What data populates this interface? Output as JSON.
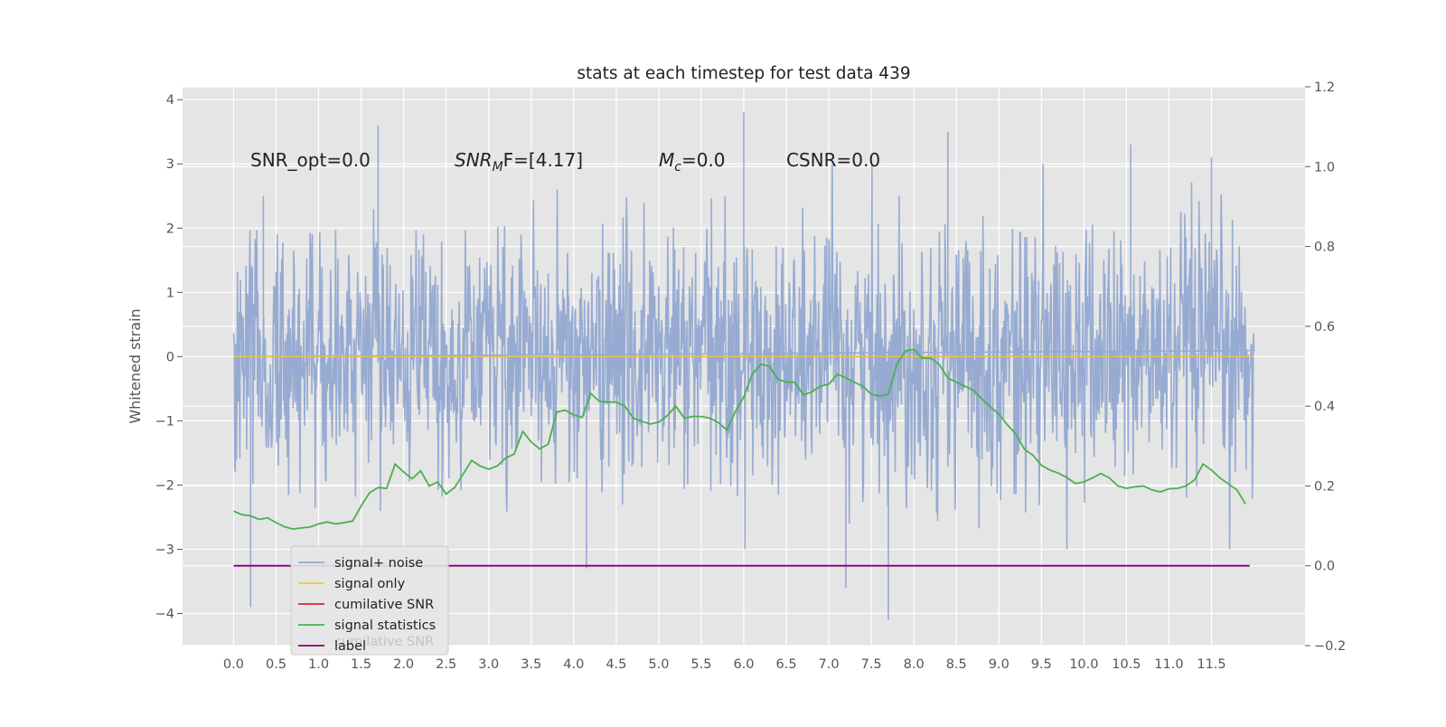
{
  "chart_data": {
    "type": "line",
    "title": "stats at each timestep for test data 439",
    "xlabel": "",
    "ylabel": "Whitened strain",
    "ylabel_right": "",
    "xlim": [
      -0.6,
      12.6
    ],
    "ylim": [
      -4.5,
      4.2
    ],
    "ylim_right": [
      -0.2,
      1.2
    ],
    "x_ticks": [
      0.0,
      0.5,
      1.0,
      1.5,
      2.0,
      2.5,
      3.0,
      3.5,
      4.0,
      4.5,
      5.0,
      5.5,
      6.0,
      6.5,
      7.0,
      7.5,
      8.0,
      8.5,
      9.0,
      9.5,
      10.0,
      10.5,
      11.0,
      11.5
    ],
    "x_tick_labels": [
      "0.0",
      "0.5",
      "1.0",
      "1.5",
      "2.0",
      "2.5",
      "3.0",
      "3.5",
      "4.0",
      "4.5",
      "5.0",
      "5.5",
      "6.0",
      "6.5",
      "7.0",
      "7.5",
      "8.0",
      "8.5",
      "9.0",
      "9.5",
      "10.0",
      "10.5",
      "11.0",
      "11.5"
    ],
    "y_ticks": [
      -4,
      -3,
      -2,
      -1,
      0,
      1,
      2,
      3,
      4
    ],
    "y_tick_labels": [
      "−4",
      "−3",
      "−2",
      "−1",
      "0",
      "1",
      "2",
      "3",
      "4"
    ],
    "y_ticks_right": [
      -0.2,
      0.0,
      0.2,
      0.4,
      0.6,
      0.8,
      1.0,
      1.2
    ],
    "y_tick_labels_right": [
      "−0.2",
      "0.0",
      "0.2",
      "0.4",
      "0.6",
      "0.8",
      "1.0",
      "1.2"
    ],
    "grid": true,
    "legend_position": "lower-left",
    "legend": [
      {
        "label": "signal+ noise",
        "color": "#92a8d1"
      },
      {
        "label": "signal only",
        "color": "#f5c542"
      },
      {
        "label": "cumilative SNR",
        "color": "#d62728"
      },
      {
        "label": "signal statistics",
        "color": "#4caf50"
      },
      {
        "label": "label",
        "color": "#800080"
      }
    ],
    "legend_hidden_text": "cumilative SNR",
    "annotations": {
      "snr_opt": "SNR_opt=0.0",
      "snr_mf_main": "SNR",
      "snr_mf_sub": "M",
      "snr_mf_rest": "F=[4.17]",
      "mc_main": "M",
      "mc_sub": "c",
      "mc_rest": "=0.0",
      "csnr": "CSNR=0.0"
    },
    "series": [
      {
        "name": "signal+ noise",
        "axis": "left",
        "color": "#92a8d1",
        "x_range": [
          0.0,
          12.0
        ],
        "y_mean": 0.0,
        "y_std": 1.0,
        "notable_extremes": [
          {
            "x": 0.2,
            "y": -3.9
          },
          {
            "x": 0.35,
            "y": 2.5
          },
          {
            "x": 1.7,
            "y": 3.6
          },
          {
            "x": 4.15,
            "y": -3.3
          },
          {
            "x": 6.0,
            "y": 3.8
          },
          {
            "x": 6.0,
            "y": 1.2
          },
          {
            "x": 7.2,
            "y": -3.6
          },
          {
            "x": 7.7,
            "y": -4.1
          },
          {
            "x": 8.4,
            "y": 3.5
          },
          {
            "x": 10.55,
            "y": 3.3
          },
          {
            "x": 11.5,
            "y": 3.1
          }
        ]
      },
      {
        "name": "signal only",
        "axis": "left",
        "color": "#f5c542",
        "x": [
          0.0,
          12.0
        ],
        "y": [
          0.0,
          0.0
        ]
      },
      {
        "name": "signal statistics",
        "axis": "right",
        "color": "#4caf50",
        "x": [
          0.0,
          0.1,
          0.2,
          0.3,
          0.4,
          0.5,
          0.6,
          0.7,
          0.8,
          0.9,
          1.0,
          1.1,
          1.2,
          1.3,
          1.4,
          1.5,
          1.6,
          1.7,
          1.8,
          1.9,
          2.0,
          2.1,
          2.2,
          2.3,
          2.4,
          2.5,
          2.6,
          2.7,
          2.8,
          2.9,
          3.0,
          3.1,
          3.2,
          3.3,
          3.4,
          3.5,
          3.6,
          3.7,
          3.8,
          3.9,
          4.0,
          4.1,
          4.2,
          4.3,
          4.4,
          4.5,
          4.6,
          4.7,
          4.8,
          4.9,
          5.0,
          5.1,
          5.2,
          5.3,
          5.4,
          5.5,
          5.6,
          5.7,
          5.8,
          5.9,
          6.0,
          6.1,
          6.2,
          6.3,
          6.4,
          6.5,
          6.6,
          6.7,
          6.8,
          6.9,
          7.0,
          7.1,
          7.2,
          7.3,
          7.4,
          7.5,
          7.6,
          7.7,
          7.8,
          7.9,
          8.0,
          8.1,
          8.2,
          8.3,
          8.4,
          8.5,
          8.6,
          8.7,
          8.8,
          8.9,
          9.0,
          9.1,
          9.2,
          9.3,
          9.4,
          9.5,
          9.6,
          9.7,
          9.8,
          9.9,
          10.0,
          10.1,
          10.2,
          10.3,
          10.4,
          10.5,
          10.6,
          10.7,
          10.8,
          10.9,
          11.0,
          11.1,
          11.2,
          11.3,
          11.4,
          11.5,
          11.6,
          11.7,
          11.8,
          11.9
        ],
        "y": [
          0.137,
          0.128,
          0.125,
          0.116,
          0.12,
          0.108,
          0.098,
          0.092,
          0.095,
          0.097,
          0.105,
          0.11,
          0.105,
          0.108,
          0.112,
          0.15,
          0.183,
          0.196,
          0.194,
          0.255,
          0.235,
          0.218,
          0.238,
          0.2,
          0.21,
          0.18,
          0.196,
          0.23,
          0.264,
          0.25,
          0.242,
          0.25,
          0.27,
          0.28,
          0.337,
          0.31,
          0.293,
          0.305,
          0.385,
          0.39,
          0.378,
          0.372,
          0.432,
          0.412,
          0.41,
          0.41,
          0.4,
          0.37,
          0.362,
          0.355,
          0.36,
          0.376,
          0.4,
          0.37,
          0.374,
          0.374,
          0.37,
          0.359,
          0.34,
          0.386,
          0.423,
          0.48,
          0.505,
          0.5,
          0.468,
          0.46,
          0.46,
          0.428,
          0.436,
          0.45,
          0.455,
          0.48,
          0.471,
          0.46,
          0.45,
          0.43,
          0.425,
          0.43,
          0.505,
          0.538,
          0.542,
          0.52,
          0.52,
          0.504,
          0.47,
          0.46,
          0.45,
          0.44,
          0.418,
          0.398,
          0.38,
          0.353,
          0.33,
          0.292,
          0.277,
          0.252,
          0.24,
          0.232,
          0.221,
          0.206,
          0.21,
          0.22,
          0.231,
          0.22,
          0.2,
          0.194,
          0.198,
          0.2,
          0.19,
          0.185,
          0.193,
          0.194,
          0.2,
          0.215,
          0.255,
          0.24,
          0.22,
          0.205,
          0.19,
          0.155
        ]
      },
      {
        "name": "label",
        "axis": "right",
        "color": "#800080",
        "x": [
          0.0,
          11.95
        ],
        "y": [
          0.0,
          0.0
        ]
      }
    ]
  }
}
